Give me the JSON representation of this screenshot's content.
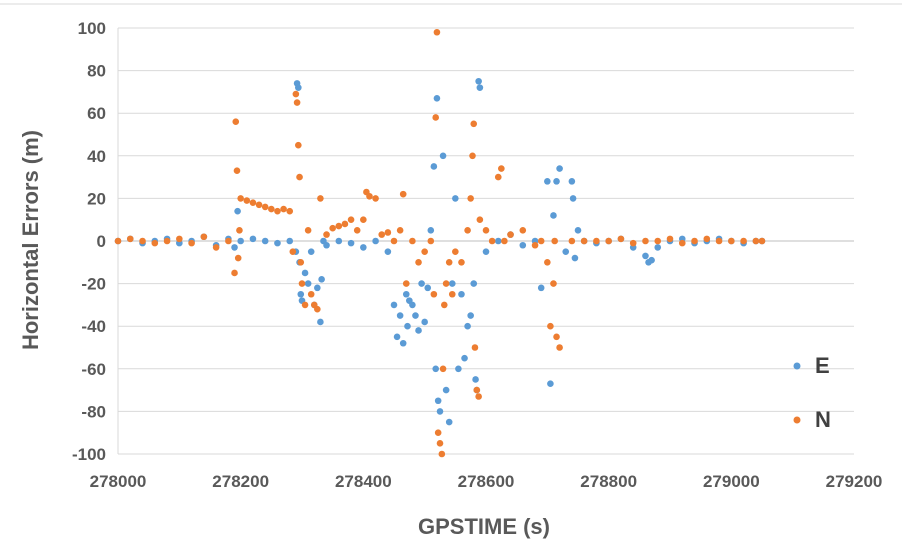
{
  "chart_data": {
    "type": "scatter",
    "title": "",
    "xlabel": "GPSTIME (s)",
    "ylabel": "Horizontal Errors (m)",
    "xlim": [
      278000,
      279200
    ],
    "ylim": [
      -100,
      100
    ],
    "x_ticks": [
      "278000",
      "278200",
      "278400",
      "278600",
      "278800",
      "279000",
      "279200"
    ],
    "y_ticks": [
      "100",
      "80",
      "60",
      "40",
      "20",
      "0",
      "-20",
      "-40",
      "-60",
      "-80",
      "-100"
    ],
    "grid": "horizontal",
    "legend_position": "right",
    "series": [
      {
        "name": "E",
        "color": "#5B9BD5",
        "x": [
          278000,
          278020,
          278040,
          278060,
          278080,
          278100,
          278120,
          278140,
          278160,
          278180,
          278190,
          278195,
          278200,
          278220,
          278240,
          278260,
          278280,
          278290,
          278292,
          278294,
          278296,
          278298,
          278300,
          278305,
          278310,
          278315,
          278320,
          278325,
          278330,
          278332,
          278335,
          278340,
          278360,
          278380,
          278400,
          278420,
          278440,
          278450,
          278455,
          278460,
          278465,
          278470,
          278472,
          278475,
          278480,
          278485,
          278490,
          278495,
          278500,
          278505,
          278510,
          278515,
          278518,
          278520,
          278522,
          278525,
          278530,
          278535,
          278540,
          278545,
          278550,
          278555,
          278560,
          278565,
          278570,
          278575,
          278580,
          278583,
          278585,
          278588,
          278590,
          278600,
          278620,
          278640,
          278660,
          278680,
          278690,
          278700,
          278705,
          278710,
          278715,
          278720,
          278730,
          278740,
          278742,
          278745,
          278750,
          278760,
          278780,
          278800,
          278820,
          278840,
          278860,
          278865,
          278870,
          278880,
          278900,
          278920,
          278940,
          278960,
          278980,
          279000,
          279020,
          279040,
          279050
        ],
        "y": [
          0,
          1,
          -1,
          0,
          1,
          -1,
          0,
          2,
          -2,
          1,
          -3,
          14,
          0,
          1,
          0,
          -1,
          0,
          -5,
          74,
          72,
          -10,
          -25,
          -28,
          -15,
          -20,
          -5,
          -30,
          -22,
          -38,
          -18,
          0,
          -2,
          0,
          -1,
          -3,
          0,
          -5,
          -30,
          -45,
          -35,
          -48,
          -25,
          -40,
          -28,
          -30,
          -35,
          -42,
          -20,
          -38,
          -22,
          5,
          35,
          -60,
          67,
          -75,
          -80,
          40,
          -70,
          -85,
          -20,
          20,
          -60,
          -25,
          -55,
          -40,
          -35,
          -20,
          -65,
          -70,
          75,
          72,
          -5,
          0,
          3,
          -2,
          0,
          -22,
          28,
          -67,
          12,
          28,
          34,
          -5,
          28,
          20,
          -8,
          5,
          0,
          -1,
          0,
          1,
          -3,
          -7,
          -10,
          -9,
          -3,
          0,
          1,
          -1,
          0,
          1,
          0,
          -1,
          0,
          0
        ]
      },
      {
        "name": "N",
        "color": "#ED7D31",
        "x": [
          278000,
          278020,
          278040,
          278060,
          278080,
          278100,
          278120,
          278140,
          278160,
          278180,
          278190,
          278192,
          278194,
          278196,
          278198,
          278200,
          278210,
          278220,
          278230,
          278240,
          278250,
          278260,
          278270,
          278280,
          278285,
          278290,
          278292,
          278294,
          278296,
          278298,
          278300,
          278305,
          278310,
          278315,
          278320,
          278325,
          278330,
          278340,
          278350,
          278360,
          278370,
          278380,
          278390,
          278400,
          278405,
          278410,
          278420,
          278430,
          278440,
          278450,
          278460,
          278465,
          278470,
          278480,
          278490,
          278500,
          278510,
          278515,
          278518,
          278520,
          278522,
          278525,
          278528,
          278530,
          278532,
          278535,
          278540,
          278545,
          278550,
          278560,
          278570,
          278575,
          278578,
          278580,
          278582,
          278585,
          278588,
          278590,
          278600,
          278610,
          278620,
          278625,
          278630,
          278640,
          278660,
          278680,
          278690,
          278700,
          278705,
          278710,
          278712,
          278715,
          278720,
          278740,
          278760,
          278780,
          278800,
          278820,
          278840,
          278860,
          278880,
          278900,
          278920,
          278940,
          278960,
          278980,
          279000,
          279020,
          279040,
          279050
        ],
        "y": [
          0,
          1,
          0,
          -1,
          0,
          1,
          -1,
          2,
          -3,
          0,
          -15,
          56,
          33,
          -8,
          5,
          20,
          19,
          18,
          17,
          16,
          15,
          14,
          15,
          14,
          -5,
          69,
          65,
          45,
          30,
          -10,
          -20,
          -30,
          5,
          -25,
          -30,
          -32,
          20,
          3,
          6,
          7,
          8,
          10,
          5,
          10,
          23,
          21,
          20,
          3,
          4,
          0,
          5,
          22,
          -20,
          0,
          -10,
          -5,
          0,
          -25,
          58,
          98,
          -90,
          -95,
          -100,
          -60,
          -30,
          -20,
          -10,
          -25,
          -5,
          -10,
          5,
          20,
          40,
          55,
          -50,
          -70,
          -73,
          10,
          5,
          0,
          30,
          34,
          0,
          3,
          5,
          -2,
          0,
          -10,
          -40,
          -20,
          0,
          -45,
          -50,
          0,
          0,
          0,
          0,
          1,
          -1,
          0,
          0,
          1,
          -1,
          0,
          1,
          0,
          0,
          0,
          0,
          0
        ]
      }
    ]
  }
}
